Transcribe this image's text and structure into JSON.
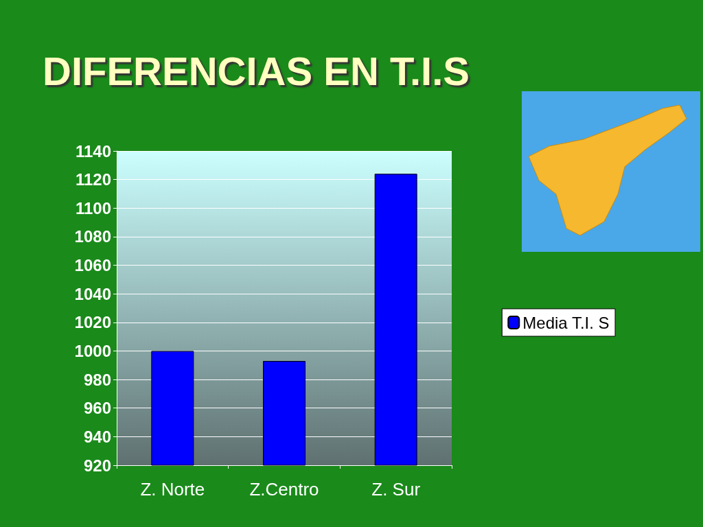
{
  "chart_data": {
    "type": "bar",
    "title": "DIFERENCIAS EN T.I.S",
    "categories": [
      "Z. Norte",
      "Z.Centro",
      "Z. Sur"
    ],
    "series": [
      {
        "name": "Media T.I. S",
        "color": "#0000ff",
        "values": [
          1000,
          993,
          1124
        ]
      }
    ],
    "ylim": [
      920,
      1140
    ],
    "yticks": [
      920,
      940,
      960,
      980,
      1000,
      1020,
      1040,
      1060,
      1080,
      1100,
      1120,
      1140
    ],
    "grid": "y",
    "legend": "right"
  }
}
